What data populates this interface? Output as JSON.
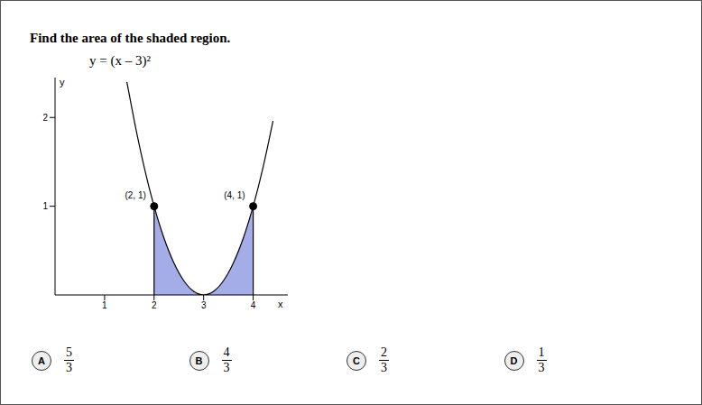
{
  "question": "Find the area of the shaded region.",
  "chart_data": {
    "type": "line",
    "title": "y = (x – 3)²",
    "x_label": "x",
    "y_label": "y",
    "x": [
      1.45,
      1.6,
      1.8,
      2,
      2.2,
      2.4,
      2.6,
      2.8,
      3,
      3.2,
      3.4,
      3.6,
      3.8,
      4,
      4.2,
      4.4
    ],
    "series": [
      {
        "type": "line",
        "color": "#000000",
        "values": [
          2.4,
          1.96,
          1.44,
          1,
          0.64,
          0.36,
          0.16,
          0.04,
          0,
          0.04,
          0.16,
          0.36,
          0.64,
          1,
          1.44,
          1.96
        ]
      },
      {
        "type": "area",
        "color": "#7f8ae0",
        "values": [
          null,
          null,
          null,
          1,
          0.64,
          0.36,
          0.16,
          0.04,
          0,
          0.04,
          0.16,
          0.36,
          0.64,
          1,
          null,
          null
        ]
      }
    ],
    "xlim": [
      0,
      4.7
    ],
    "ylim": [
      0,
      2.45
    ],
    "xticks": [
      1,
      2,
      3,
      4
    ],
    "yticks": [
      1,
      2
    ],
    "annotations": [
      {
        "x": 2,
        "y": 1,
        "label": "(2, 1)"
      },
      {
        "x": 4,
        "y": 1,
        "label": "(4, 1)"
      }
    ]
  },
  "choices": [
    {
      "letter": "A",
      "numerator": 5,
      "denominator": 3
    },
    {
      "letter": "B",
      "numerator": 4,
      "denominator": 3
    },
    {
      "letter": "C",
      "numerator": 2,
      "denominator": 3
    },
    {
      "letter": "D",
      "numerator": 1,
      "denominator": 3
    }
  ]
}
